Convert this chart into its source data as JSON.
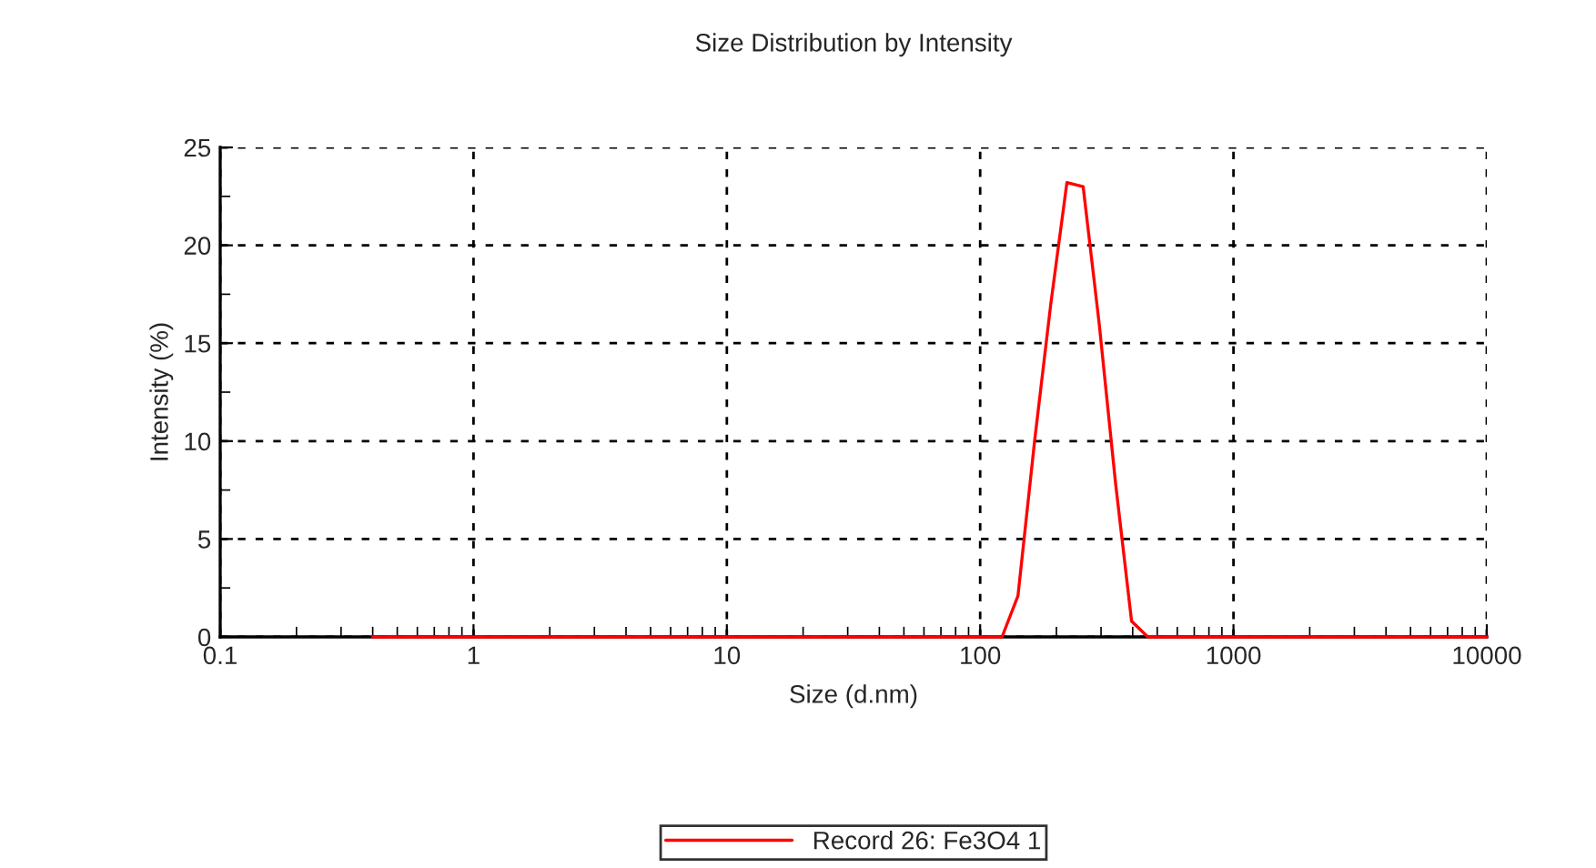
{
  "chart_data": {
    "type": "line",
    "title": "Size Distribution by Intensity",
    "xlabel": "Size (d.nm)",
    "ylabel": "Intensity (%)",
    "log": "x",
    "xlim": [
      0.1,
      10000
    ],
    "xticks": [
      0.1,
      1,
      10,
      100,
      1000,
      10000
    ],
    "ylim": [
      0,
      25
    ],
    "yticks": [
      0,
      5,
      10,
      15,
      20,
      25
    ],
    "grid": true,
    "legend": "bottom",
    "line_style": "solid",
    "marker": "none",
    "series": [
      {
        "name": "Record 26: Fe3O4 1",
        "color": "#ff0000",
        "x": [
          0.4,
          1,
          10,
          122,
          141,
          164,
          190,
          220,
          255,
          295,
          342,
          396,
          459,
          1000,
          10000
        ],
        "values": [
          0,
          0,
          0,
          0,
          2.1,
          10,
          17,
          23.2,
          23.0,
          16,
          7.9,
          0.8,
          0,
          0,
          0
        ]
      }
    ]
  }
}
